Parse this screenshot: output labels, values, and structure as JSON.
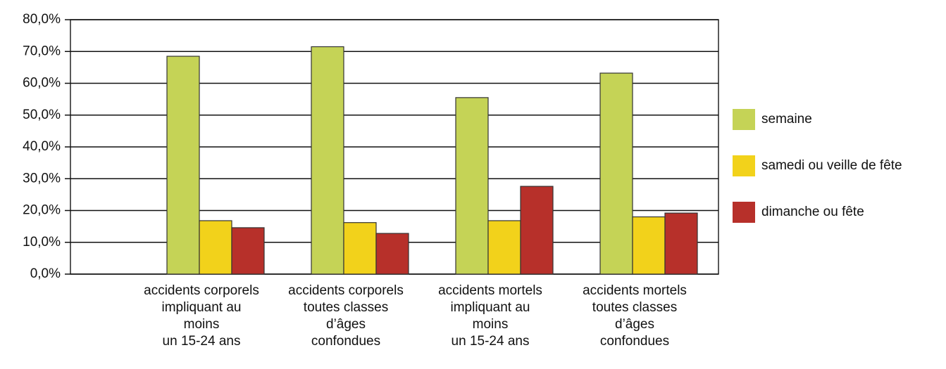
{
  "chart_data": {
    "type": "bar",
    "categories": [
      "accidents corporels\nimpliquant au\nmoins\nun 15-24 ans",
      "accidents corporels\ntoutes classes\nd’âges\nconfondues",
      "accidents mortels\nimpliquant au\nmoins\nun 15-24 ans",
      "accidents mortels\ntoutes classes\nd’âges\nconfondues"
    ],
    "series": [
      {
        "name": "semaine",
        "color": "#c5d356",
        "values": [
          68.5,
          71.5,
          55.5,
          63.2
        ]
      },
      {
        "name": "samedi ou veille de fête",
        "color": "#f2d21b",
        "values": [
          16.8,
          16.2,
          16.8,
          18.0
        ]
      },
      {
        "name": "dimanche ou fête",
        "color": "#b7302a",
        "values": [
          14.6,
          12.8,
          27.6,
          19.2
        ]
      }
    ],
    "ylim": [
      0,
      80
    ],
    "yticks": [
      {
        "value": 0,
        "label": "0,0%"
      },
      {
        "value": 10,
        "label": "10,0%"
      },
      {
        "value": 20,
        "label": "20,0%"
      },
      {
        "value": 30,
        "label": "30,0%"
      },
      {
        "value": 40,
        "label": "40,0%"
      },
      {
        "value": 50,
        "label": "50,0%"
      },
      {
        "value": 60,
        "label": "60,0%"
      },
      {
        "value": 70,
        "label": "70,0%"
      },
      {
        "value": 80,
        "label": "80,0%"
      }
    ],
    "grid": true,
    "legend": "right"
  }
}
